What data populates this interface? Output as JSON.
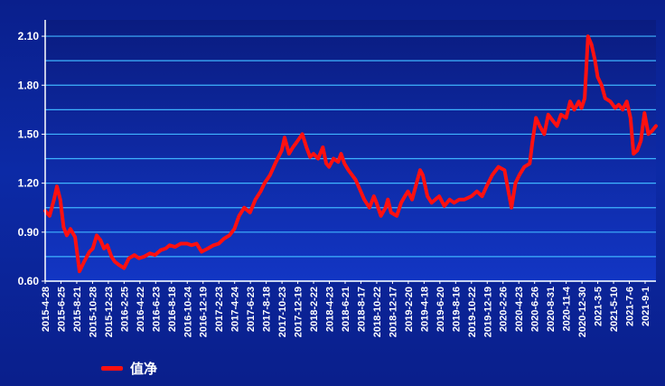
{
  "chart_data": {
    "type": "line",
    "title": "",
    "xlabel": "",
    "ylabel": "",
    "ylim": [
      0.6,
      2.2
    ],
    "y_ticks": [
      "0.60",
      "0.90",
      "1.20",
      "1.50",
      "1.80",
      "2.10"
    ],
    "y_tick_values": [
      0.6,
      0.9,
      1.2,
      1.5,
      1.8,
      2.1
    ],
    "x_ticks": [
      "2015-4-28",
      "2015-6-25",
      "2015-8-21",
      "2015-10-28",
      "2015-12-23",
      "2016-2-25",
      "2016-4-22",
      "2016-6-23",
      "2016-8-18",
      "2016-10-24",
      "2016-12-19",
      "2017-2-23",
      "2017-4-24",
      "2017-6-23",
      "2017-8-18",
      "2017-10-23",
      "2017-12-19",
      "2018-2-22",
      "2018-4-23",
      "2018-6-21",
      "2018-8-17",
      "2018-10-22",
      "2018-12-17",
      "2019-2-20",
      "2019-4-18",
      "2019-6-20",
      "2019-8-16",
      "2019-10-22",
      "2019-12-19",
      "2020-2-26",
      "2020-4-23",
      "2020-6-26",
      "2020-8-31",
      "2020-11-4",
      "2020-12-30",
      "2021-3-5",
      "2021-5-10",
      "2021-7-6",
      "2021-9-1"
    ],
    "grid": true,
    "legend": "bottom-left",
    "colors": {
      "line": "#ff1010",
      "grid": "#3fb4ff",
      "axis": "#ffffff",
      "text": "#ffffff"
    },
    "series": [
      {
        "name": "值净",
        "x": [
          "2015-4-28",
          "2015-5-15",
          "2015-6-1",
          "2015-6-12",
          "2015-6-25",
          "2015-7-8",
          "2015-7-20",
          "2015-8-3",
          "2015-8-21",
          "2015-9-7",
          "2015-9-25",
          "2015-10-15",
          "2015-10-28",
          "2015-11-12",
          "2015-11-27",
          "2015-12-10",
          "2015-12-23",
          "2016-1-8",
          "2016-1-20",
          "2016-2-5",
          "2016-2-25",
          "2016-3-15",
          "2016-4-5",
          "2016-4-22",
          "2016-5-12",
          "2016-6-3",
          "2016-6-23",
          "2016-7-15",
          "2016-8-3",
          "2016-8-18",
          "2016-9-8",
          "2016-9-30",
          "2016-10-24",
          "2016-11-10",
          "2016-11-30",
          "2016-12-19",
          "2017-1-12",
          "2017-2-3",
          "2017-2-23",
          "2017-3-15",
          "2017-4-5",
          "2017-4-24",
          "2017-5-12",
          "2017-6-1",
          "2017-6-23",
          "2017-7-14",
          "2017-8-3",
          "2017-8-18",
          "2017-9-8",
          "2017-9-28",
          "2017-10-23",
          "2017-11-3",
          "2017-11-20",
          "2017-12-5",
          "2017-12-19",
          "2018-1-10",
          "2018-1-26",
          "2018-2-9",
          "2018-2-22",
          "2018-3-12",
          "2018-3-30",
          "2018-4-12",
          "2018-4-23",
          "2018-5-10",
          "2018-5-28",
          "2018-6-8",
          "2018-6-21",
          "2018-7-6",
          "2018-7-20",
          "2018-8-3",
          "2018-8-17",
          "2018-9-5",
          "2018-9-25",
          "2018-10-12",
          "2018-10-22",
          "2018-11-8",
          "2018-11-26",
          "2018-12-5",
          "2018-12-17",
          "2019-1-8",
          "2019-1-25",
          "2019-2-8",
          "2019-2-20",
          "2019-3-8",
          "2019-3-25",
          "2019-4-8",
          "2019-4-18",
          "2019-5-6",
          "2019-5-22",
          "2019-6-5",
          "2019-6-20",
          "2019-7-10",
          "2019-7-30",
          "2019-8-16",
          "2019-9-5",
          "2019-9-25",
          "2019-10-22",
          "2019-11-12",
          "2019-12-2",
          "2019-12-19",
          "2020-1-10",
          "2020-2-3",
          "2020-2-26",
          "2020-3-12",
          "2020-3-24",
          "2020-4-8",
          "2020-4-23",
          "2020-5-12",
          "2020-6-2",
          "2020-6-12",
          "2020-6-26",
          "2020-7-10",
          "2020-7-28",
          "2020-8-12",
          "2020-8-31",
          "2020-9-15",
          "2020-9-30",
          "2020-10-20",
          "2020-11-4",
          "2020-11-20",
          "2020-12-7",
          "2020-12-18",
          "2020-12-30",
          "2021-1-12",
          "2021-1-25",
          "2021-2-8",
          "2021-2-18",
          "2021-3-5",
          "2021-3-19",
          "2021-4-8",
          "2021-4-26",
          "2021-5-10",
          "2021-5-25",
          "2021-6-10",
          "2021-6-24",
          "2021-7-6",
          "2021-7-20",
          "2021-8-3",
          "2021-8-17",
          "2021-9-1",
          "2021-9-15",
          "2021-9-30"
        ],
        "y": [
          1.03,
          1.0,
          1.1,
          1.18,
          1.1,
          0.93,
          0.88,
          0.92,
          0.87,
          0.66,
          0.72,
          0.78,
          0.8,
          0.88,
          0.85,
          0.8,
          0.82,
          0.75,
          0.72,
          0.7,
          0.68,
          0.74,
          0.76,
          0.74,
          0.75,
          0.77,
          0.76,
          0.79,
          0.8,
          0.82,
          0.81,
          0.83,
          0.83,
          0.82,
          0.83,
          0.78,
          0.8,
          0.82,
          0.83,
          0.86,
          0.88,
          0.92,
          1.0,
          1.05,
          1.02,
          1.1,
          1.15,
          1.2,
          1.25,
          1.32,
          1.4,
          1.48,
          1.38,
          1.42,
          1.45,
          1.5,
          1.42,
          1.36,
          1.38,
          1.35,
          1.42,
          1.32,
          1.3,
          1.35,
          1.33,
          1.38,
          1.32,
          1.28,
          1.25,
          1.22,
          1.17,
          1.1,
          1.05,
          1.12,
          1.08,
          1.0,
          1.05,
          1.1,
          1.02,
          1.0,
          1.08,
          1.12,
          1.15,
          1.1,
          1.2,
          1.28,
          1.25,
          1.12,
          1.08,
          1.1,
          1.12,
          1.06,
          1.1,
          1.08,
          1.1,
          1.1,
          1.12,
          1.15,
          1.12,
          1.18,
          1.25,
          1.3,
          1.28,
          1.15,
          1.05,
          1.2,
          1.25,
          1.3,
          1.32,
          1.45,
          1.6,
          1.55,
          1.5,
          1.62,
          1.58,
          1.55,
          1.62,
          1.6,
          1.7,
          1.65,
          1.7,
          1.66,
          1.72,
          2.1,
          2.05,
          1.95,
          1.85,
          1.8,
          1.72,
          1.7,
          1.66,
          1.68,
          1.65,
          1.7,
          1.6,
          1.38,
          1.4,
          1.46,
          1.63,
          1.5,
          1.52,
          1.55
        ]
      }
    ]
  },
  "legend": {
    "label": "值净"
  }
}
